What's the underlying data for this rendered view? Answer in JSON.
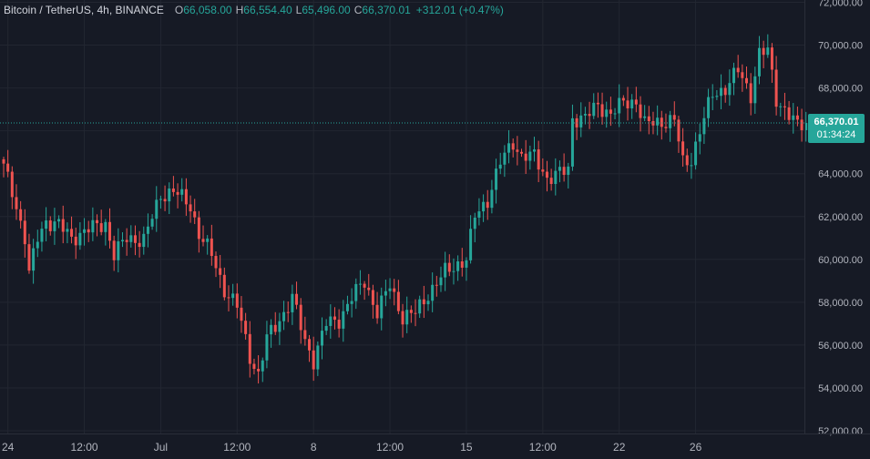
{
  "legend": {
    "symbol": "Bitcoin / TetherUS, 4h, BINANCE",
    "o_label": "O",
    "o_value": "66,058.00",
    "h_label": "H",
    "h_value": "66,554.40",
    "l_label": "L",
    "l_value": "65,496.00",
    "c_label": "C",
    "c_value": "66,370.01",
    "change": "+312.01 (+0.47%)"
  },
  "last_price": {
    "price": "66,370.01",
    "countdown": "01:34:24",
    "value": 66370.01
  },
  "colors": {
    "background": "#161a25",
    "up": "#26a69a",
    "down": "#ef5350",
    "grid": "#222631",
    "axis_text": "#b2b5be"
  },
  "chart_data": {
    "type": "candlestick",
    "symbol": "BTCUSDT",
    "timeframe": "4h",
    "ylim": [
      52000,
      72000
    ],
    "yticks": [
      {
        "value": 52000,
        "label": "52,000.00"
      },
      {
        "value": 54000,
        "label": "54,000.00"
      },
      {
        "value": 56000,
        "label": "56,000.00"
      },
      {
        "value": 58000,
        "label": "58,000.00"
      },
      {
        "value": 60000,
        "label": "60,000.00"
      },
      {
        "value": 62000,
        "label": "62,000.00"
      },
      {
        "value": 64000,
        "label": "64,000.00"
      },
      {
        "value": 66000,
        "label": "66,000.00"
      },
      {
        "value": 68000,
        "label": "68,000.00"
      },
      {
        "value": 70000,
        "label": "70,000.00"
      },
      {
        "value": 72000,
        "label": "72,000.00"
      }
    ],
    "xticks": [
      {
        "index": 1,
        "label": "24"
      },
      {
        "index": 19,
        "label": "12:00"
      },
      {
        "index": 37,
        "label": "Jul"
      },
      {
        "index": 55,
        "label": "12:00"
      },
      {
        "index": 73,
        "label": "8"
      },
      {
        "index": 91,
        "label": "12:00"
      },
      {
        "index": 109,
        "label": "15"
      },
      {
        "index": 127,
        "label": "12:00"
      },
      {
        "index": 145,
        "label": "22"
      },
      {
        "index": 163,
        "label": "26"
      }
    ],
    "anchors": [
      [
        0,
        64300
      ],
      [
        2,
        63200
      ],
      [
        5,
        61000
      ],
      [
        6,
        59300
      ],
      [
        8,
        61000
      ],
      [
        10,
        61800
      ],
      [
        13,
        61600
      ],
      [
        16,
        61000
      ],
      [
        20,
        61400
      ],
      [
        24,
        61700
      ],
      [
        26,
        60200
      ],
      [
        29,
        61000
      ],
      [
        33,
        60900
      ],
      [
        37,
        63000
      ],
      [
        40,
        63200
      ],
      [
        44,
        62500
      ],
      [
        46,
        61200
      ],
      [
        49,
        60200
      ],
      [
        52,
        58600
      ],
      [
        55,
        57800
      ],
      [
        58,
        55500
      ],
      [
        60,
        54600
      ],
      [
        62,
        56300
      ],
      [
        66,
        57500
      ],
      [
        68,
        58200
      ],
      [
        71,
        56200
      ],
      [
        73,
        55300
      ],
      [
        76,
        57000
      ],
      [
        79,
        57200
      ],
      [
        82,
        58200
      ],
      [
        85,
        59000
      ],
      [
        88,
        57500
      ],
      [
        91,
        58800
      ],
      [
        94,
        57300
      ],
      [
        97,
        57500
      ],
      [
        100,
        58400
      ],
      [
        104,
        59400
      ],
      [
        107,
        59800
      ],
      [
        109,
        60000
      ],
      [
        111,
        62000
      ],
      [
        114,
        62800
      ],
      [
        117,
        64500
      ],
      [
        120,
        65500
      ],
      [
        122,
        64800
      ],
      [
        125,
        64800
      ],
      [
        128,
        63800
      ],
      [
        131,
        64000
      ],
      [
        133,
        64200
      ],
      [
        134,
        66600
      ],
      [
        137,
        66600
      ],
      [
        140,
        67200
      ],
      [
        143,
        66800
      ],
      [
        146,
        67300
      ],
      [
        149,
        67400
      ],
      [
        151,
        66300
      ],
      [
        154,
        66400
      ],
      [
        158,
        66500
      ],
      [
        160,
        64500
      ],
      [
        162,
        64700
      ],
      [
        164,
        66000
      ],
      [
        167,
        67700
      ],
      [
        170,
        68000
      ],
      [
        173,
        68800
      ],
      [
        176,
        67700
      ],
      [
        178,
        69600
      ],
      [
        180,
        69700
      ],
      [
        182,
        67500
      ],
      [
        184,
        67000
      ],
      [
        187,
        66200
      ],
      [
        189,
        66370.01
      ]
    ]
  },
  "axis": {
    "price_labels": [
      "72,000.00",
      "70,000.00",
      "68,000.00",
      "66,000.00",
      "64,000.00",
      "62,000.00",
      "60,000.00",
      "58,000.00",
      "56,000.00",
      "54,000.00",
      "52,000.00"
    ],
    "time_labels": [
      "24",
      "12:00",
      "Jul",
      "12:00",
      "8",
      "12:00",
      "15",
      "12:00",
      "22",
      "26"
    ]
  }
}
